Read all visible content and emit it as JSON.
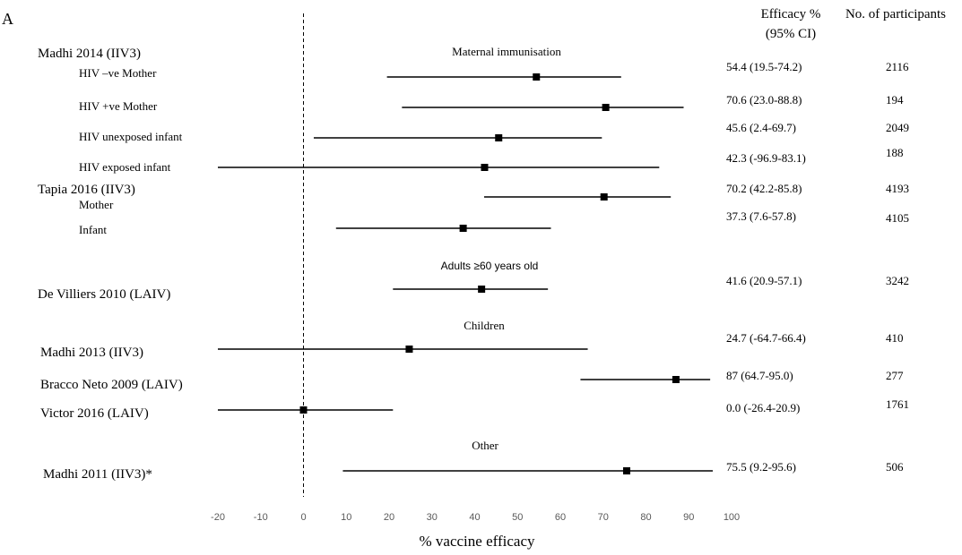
{
  "chart_data": {
    "type": "forest",
    "panel_label": "A",
    "xlabel": "% vaccine efficacy",
    "xlim": [
      -20,
      100
    ],
    "xticks": [
      -20,
      -10,
      0,
      10,
      20,
      30,
      40,
      50,
      60,
      70,
      80,
      90,
      100
    ],
    "reference_line": 0,
    "column_headers": {
      "efficacy_line1": "Efficacy %",
      "efficacy_line2": "(95% CI)",
      "participants": "No. of participants"
    },
    "sections": [
      {
        "title": "Maternal immunisation"
      },
      {
        "title": "Adults ≥60 years old"
      },
      {
        "title": "Children"
      },
      {
        "title": "Other"
      }
    ],
    "groups": [
      {
        "label": "Madhi 2014 (IIV3)"
      },
      {
        "label": "Tapia 2016 (IIV3)"
      }
    ],
    "rows": [
      {
        "label": "HIV –ve Mother",
        "estimate": 54.4,
        "ci": [
          19.5,
          74.2
        ],
        "efficacy_text": "54.4 (19.5-74.2)",
        "participants": "2116"
      },
      {
        "label": "HIV +ve Mother",
        "estimate": 70.6,
        "ci": [
          23.0,
          88.8
        ],
        "efficacy_text": "70.6 (23.0-88.8)",
        "participants": "194"
      },
      {
        "label": "HIV unexposed infant",
        "estimate": 45.6,
        "ci": [
          2.4,
          69.7
        ],
        "efficacy_text": "45.6 (2.4-69.7)",
        "participants": "2049"
      },
      {
        "label": "HIV exposed infant",
        "estimate": 42.3,
        "ci": [
          -20,
          83.1
        ],
        "efficacy_text": "42.3 (-96.9-83.1)",
        "participants": "188"
      },
      {
        "label": "Mother",
        "estimate": 70.2,
        "ci": [
          42.2,
          85.8
        ],
        "efficacy_text": "70.2 (42.2-85.8)",
        "participants": "4193"
      },
      {
        "label": "Infant",
        "estimate": 37.3,
        "ci": [
          7.6,
          57.8
        ],
        "efficacy_text": "37.3 (7.6-57.8)",
        "participants": "4105"
      },
      {
        "label": "De Villiers 2010 (LAIV)",
        "estimate": 41.6,
        "ci": [
          20.9,
          57.1
        ],
        "efficacy_text": "41.6 (20.9-57.1)",
        "participants": "3242"
      },
      {
        "label": "Madhi 2013 (IIV3)",
        "estimate": 24.7,
        "ci": [
          -20,
          66.4
        ],
        "efficacy_text": "24.7 (-64.7-66.4)",
        "participants": "410"
      },
      {
        "label": "Bracco Neto 2009 (LAIV)",
        "estimate": 87,
        "ci": [
          64.7,
          95.0
        ],
        "efficacy_text": "87 (64.7-95.0)",
        "participants": "277"
      },
      {
        "label": "Victor 2016 (LAIV)",
        "estimate": 0.0,
        "ci": [
          -20,
          20.9
        ],
        "efficacy_text": "0.0 (-26.4-20.9)",
        "participants": "1761"
      },
      {
        "label": "Madhi 2011 (IIV3)*",
        "estimate": 75.5,
        "ci": [
          9.2,
          95.6
        ],
        "efficacy_text": "75.5 (9.2-95.6)",
        "participants": "506"
      }
    ]
  }
}
